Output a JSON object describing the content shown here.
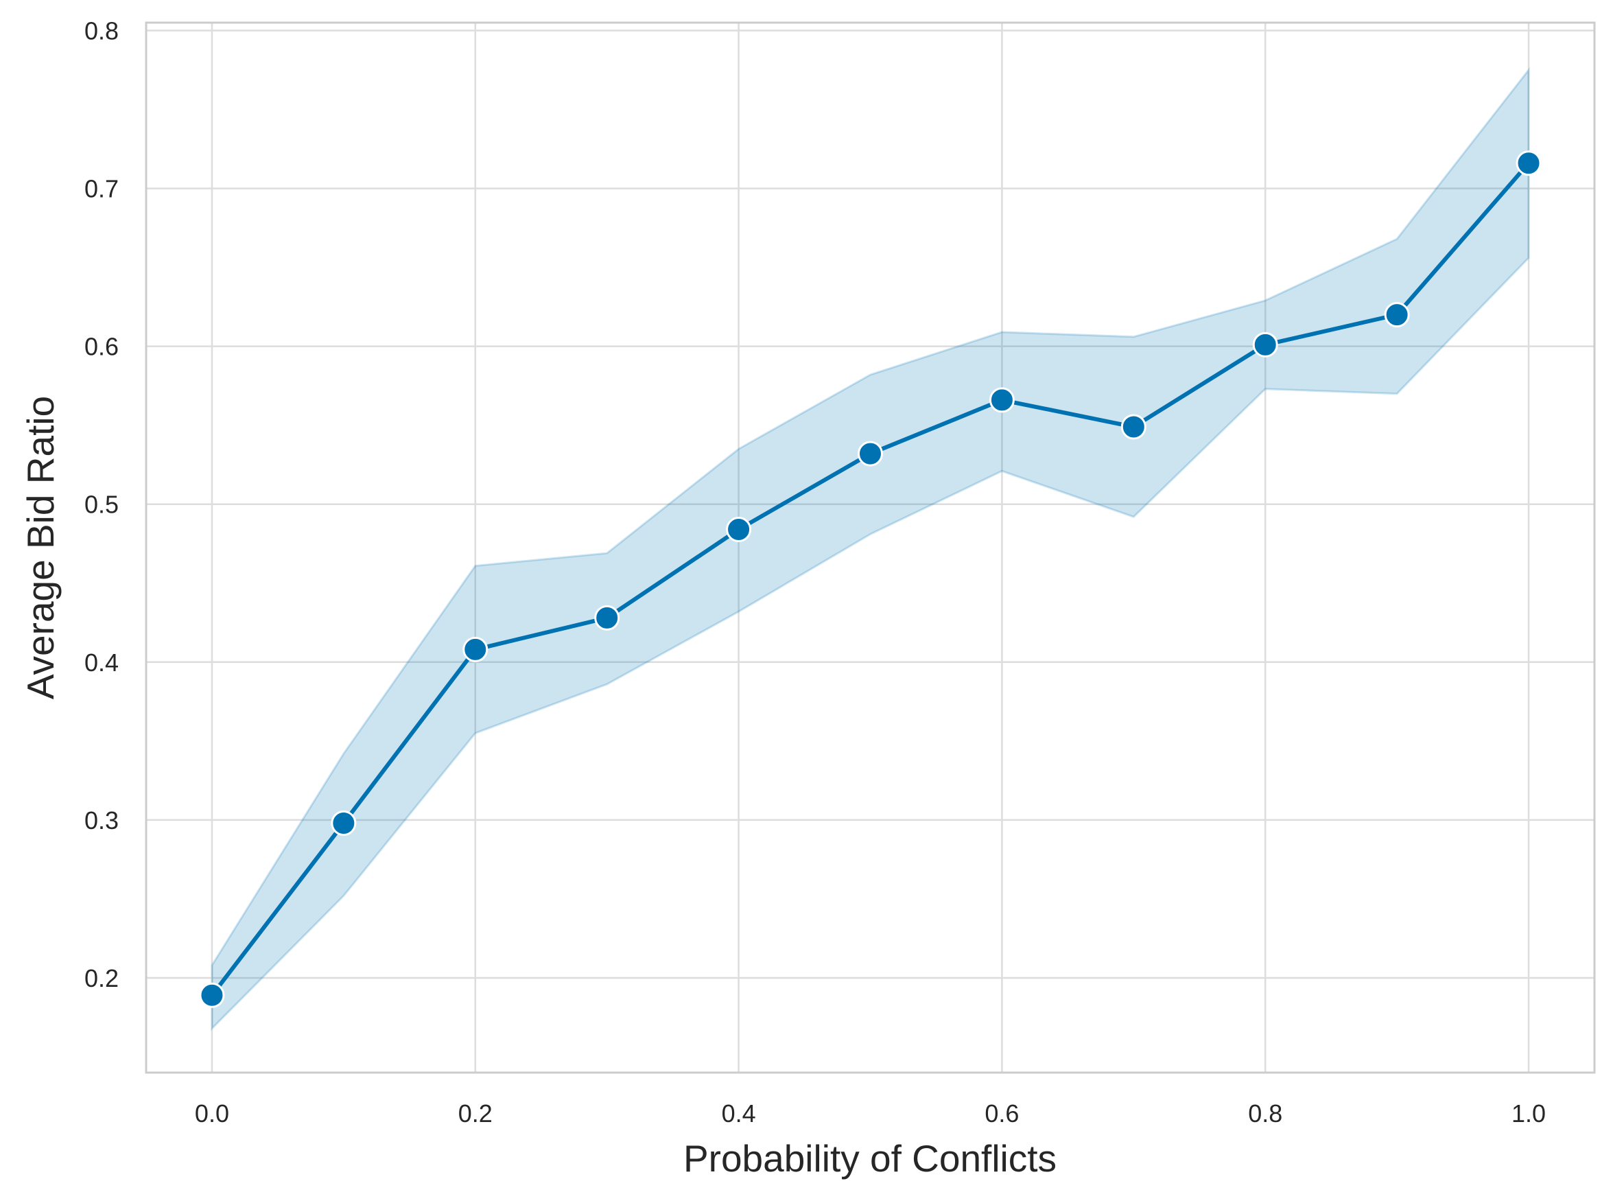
{
  "chart_data": {
    "type": "line",
    "title": "",
    "xlabel": "Probability of Conflicts",
    "ylabel": "Average Bid Ratio",
    "xlim": [
      -0.05,
      1.05
    ],
    "ylim": [
      0.14,
      0.805
    ],
    "grid": true,
    "x_ticks": [
      "0.0",
      "0.2",
      "0.4",
      "0.6",
      "0.8",
      "1.0"
    ],
    "y_ticks": [
      "0.2",
      "0.3",
      "0.4",
      "0.5",
      "0.6",
      "0.7",
      "0.8"
    ],
    "series": [
      {
        "x": [
          0.0,
          0.1,
          0.2,
          0.3,
          0.4,
          0.5,
          0.6,
          0.7,
          0.8,
          0.9,
          1.0
        ],
        "y": [
          0.189,
          0.298,
          0.408,
          0.428,
          0.484,
          0.532,
          0.566,
          0.549,
          0.601,
          0.62,
          0.716
        ],
        "ci_lower": [
          0.168,
          0.252,
          0.355,
          0.386,
          0.432,
          0.481,
          0.521,
          0.492,
          0.573,
          0.57,
          0.656
        ],
        "ci_upper": [
          0.208,
          0.342,
          0.461,
          0.469,
          0.535,
          0.582,
          0.609,
          0.606,
          0.629,
          0.668,
          0.775
        ],
        "color": "#0072b2",
        "band_color": "#0072b2"
      }
    ]
  }
}
